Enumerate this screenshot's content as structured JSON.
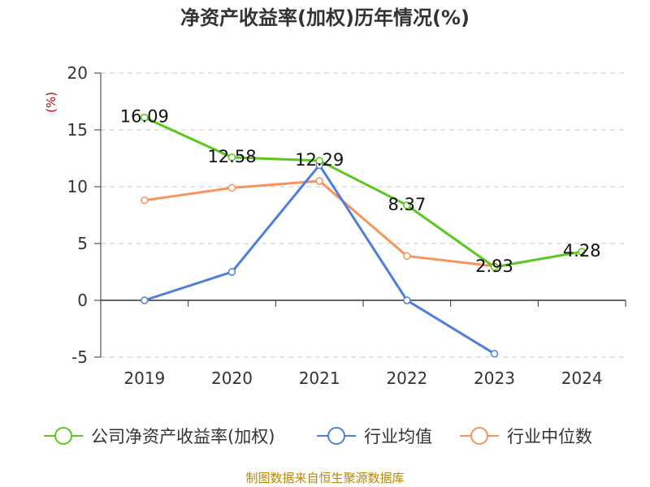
{
  "chart_data": {
    "type": "line",
    "title": "净资产收益率(加权)历年情况(%)",
    "ylabel": "(%)",
    "categories": [
      "2019",
      "2020",
      "2021",
      "2022",
      "2023",
      "2024"
    ],
    "ylim": [
      -5,
      20
    ],
    "yticks": [
      20,
      15,
      10,
      5,
      0,
      -5
    ],
    "ytick_labels": [
      "20",
      "15",
      "10",
      "5",
      "0",
      "-5"
    ],
    "grid": true,
    "legend_position": "bottom",
    "series": [
      {
        "name": "公司净资产收益率(加权)",
        "color": "#5cc71f",
        "values": [
          16.09,
          12.58,
          12.29,
          8.37,
          2.93,
          4.28
        ],
        "labels": [
          "16.09",
          "12.58",
          "12.29",
          "8.37",
          "2.93",
          "4.28"
        ]
      },
      {
        "name": "行业均值",
        "color": "#4e7fdb",
        "values": [
          0.0,
          2.5,
          11.9,
          0.0,
          -4.7,
          null
        ]
      },
      {
        "name": "行业中位数",
        "color": "#f7935c",
        "values": [
          8.8,
          9.9,
          10.5,
          3.9,
          3.0,
          null
        ]
      }
    ],
    "source": "制图数据来自恒生聚源数据库"
  }
}
